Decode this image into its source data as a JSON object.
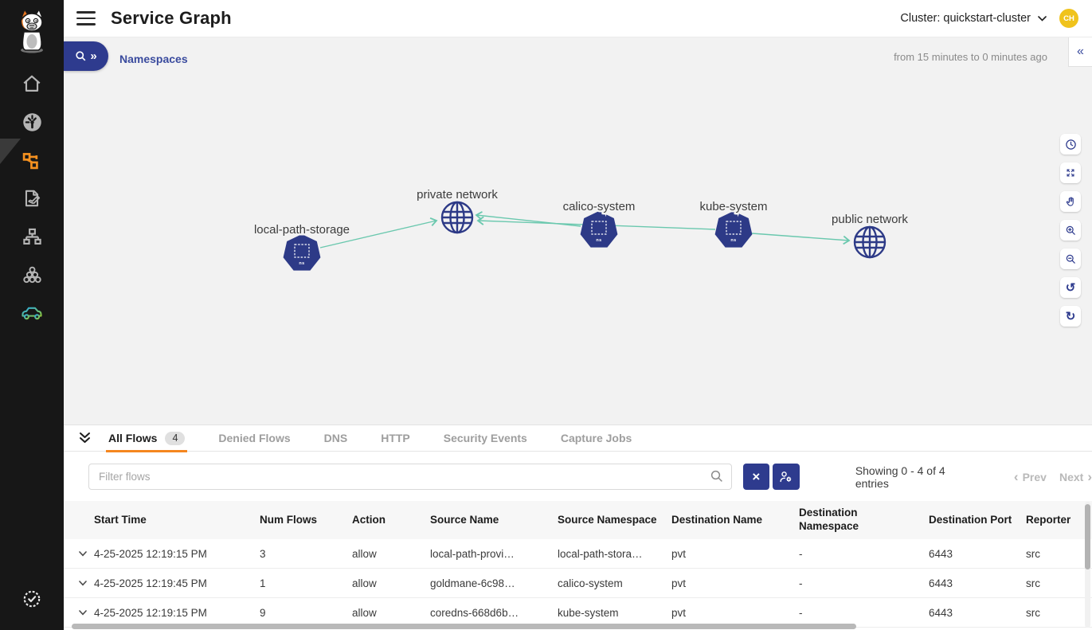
{
  "app": {
    "title": "Service Graph",
    "cluster_label": "Cluster: quickstart-cluster",
    "avatar_initials": "CH"
  },
  "breadcrumb": {
    "label": "Namespaces"
  },
  "time_range": "from 15 minutes to 0 minutes ago",
  "icons": {
    "panel_collapse": "«",
    "pill_chevrons": "»",
    "undo": "↺",
    "refresh": "↻",
    "clear": "×",
    "prev_chevron": "‹",
    "next_chevron": "›"
  },
  "graph": {
    "node_badge": "ns",
    "nodes": [
      {
        "id": "local-path-storage",
        "label": "local-path-storage",
        "type": "namespace"
      },
      {
        "id": "private-network",
        "label": "private network",
        "type": "network"
      },
      {
        "id": "calico-system",
        "label": "calico-system",
        "type": "namespace"
      },
      {
        "id": "kube-system",
        "label": "kube-system",
        "type": "namespace"
      },
      {
        "id": "public-network",
        "label": "public network",
        "type": "network"
      }
    ],
    "edges": [
      {
        "source": "local-path-storage",
        "target": "private-network"
      },
      {
        "source": "calico-system",
        "target": "private-network"
      },
      {
        "source": "kube-system",
        "target": "private-network"
      },
      {
        "source": "kube-system",
        "target": "public-network"
      }
    ]
  },
  "flows_panel": {
    "tabs": [
      {
        "label": "All Flows",
        "badge": "4",
        "active": true
      },
      {
        "label": "Denied Flows"
      },
      {
        "label": "DNS"
      },
      {
        "label": "HTTP"
      },
      {
        "label": "Security Events"
      },
      {
        "label": "Capture Jobs"
      }
    ],
    "filter_placeholder": "Filter flows",
    "showing": "Showing 0 - 4 of 4 entries",
    "prev_label": "Prev",
    "next_label": "Next",
    "table": {
      "columns": [
        "Start Time",
        "Num Flows",
        "Action",
        "Source Name",
        "Source Namespace",
        "Destination Name",
        "Destination Namespace",
        "Destination Port",
        "Reporter"
      ],
      "rows": [
        [
          "4-25-2025 12:19:15 PM",
          "3",
          "allow",
          "local-path-provi…",
          "local-path-stora…",
          "pvt",
          "-",
          "6443",
          "src"
        ],
        [
          "4-25-2025 12:19:45 PM",
          "1",
          "allow",
          "goldmane-6c98…",
          "calico-system",
          "pvt",
          "-",
          "6443",
          "src"
        ],
        [
          "4-25-2025 12:19:15 PM",
          "9",
          "allow",
          "coredns-668d6b…",
          "kube-system",
          "pvt",
          "-",
          "6443",
          "src"
        ]
      ]
    }
  },
  "colors": {
    "accent_blue": "#2e3b8e",
    "active_orange": "#f5861f",
    "node_navy": "#2d3a87",
    "edge_teal": "#6ac8ae",
    "avatar_yellow": "#f0c31c",
    "sidebar_bg": "#171717",
    "graph_bg": "#f2f2f2"
  }
}
